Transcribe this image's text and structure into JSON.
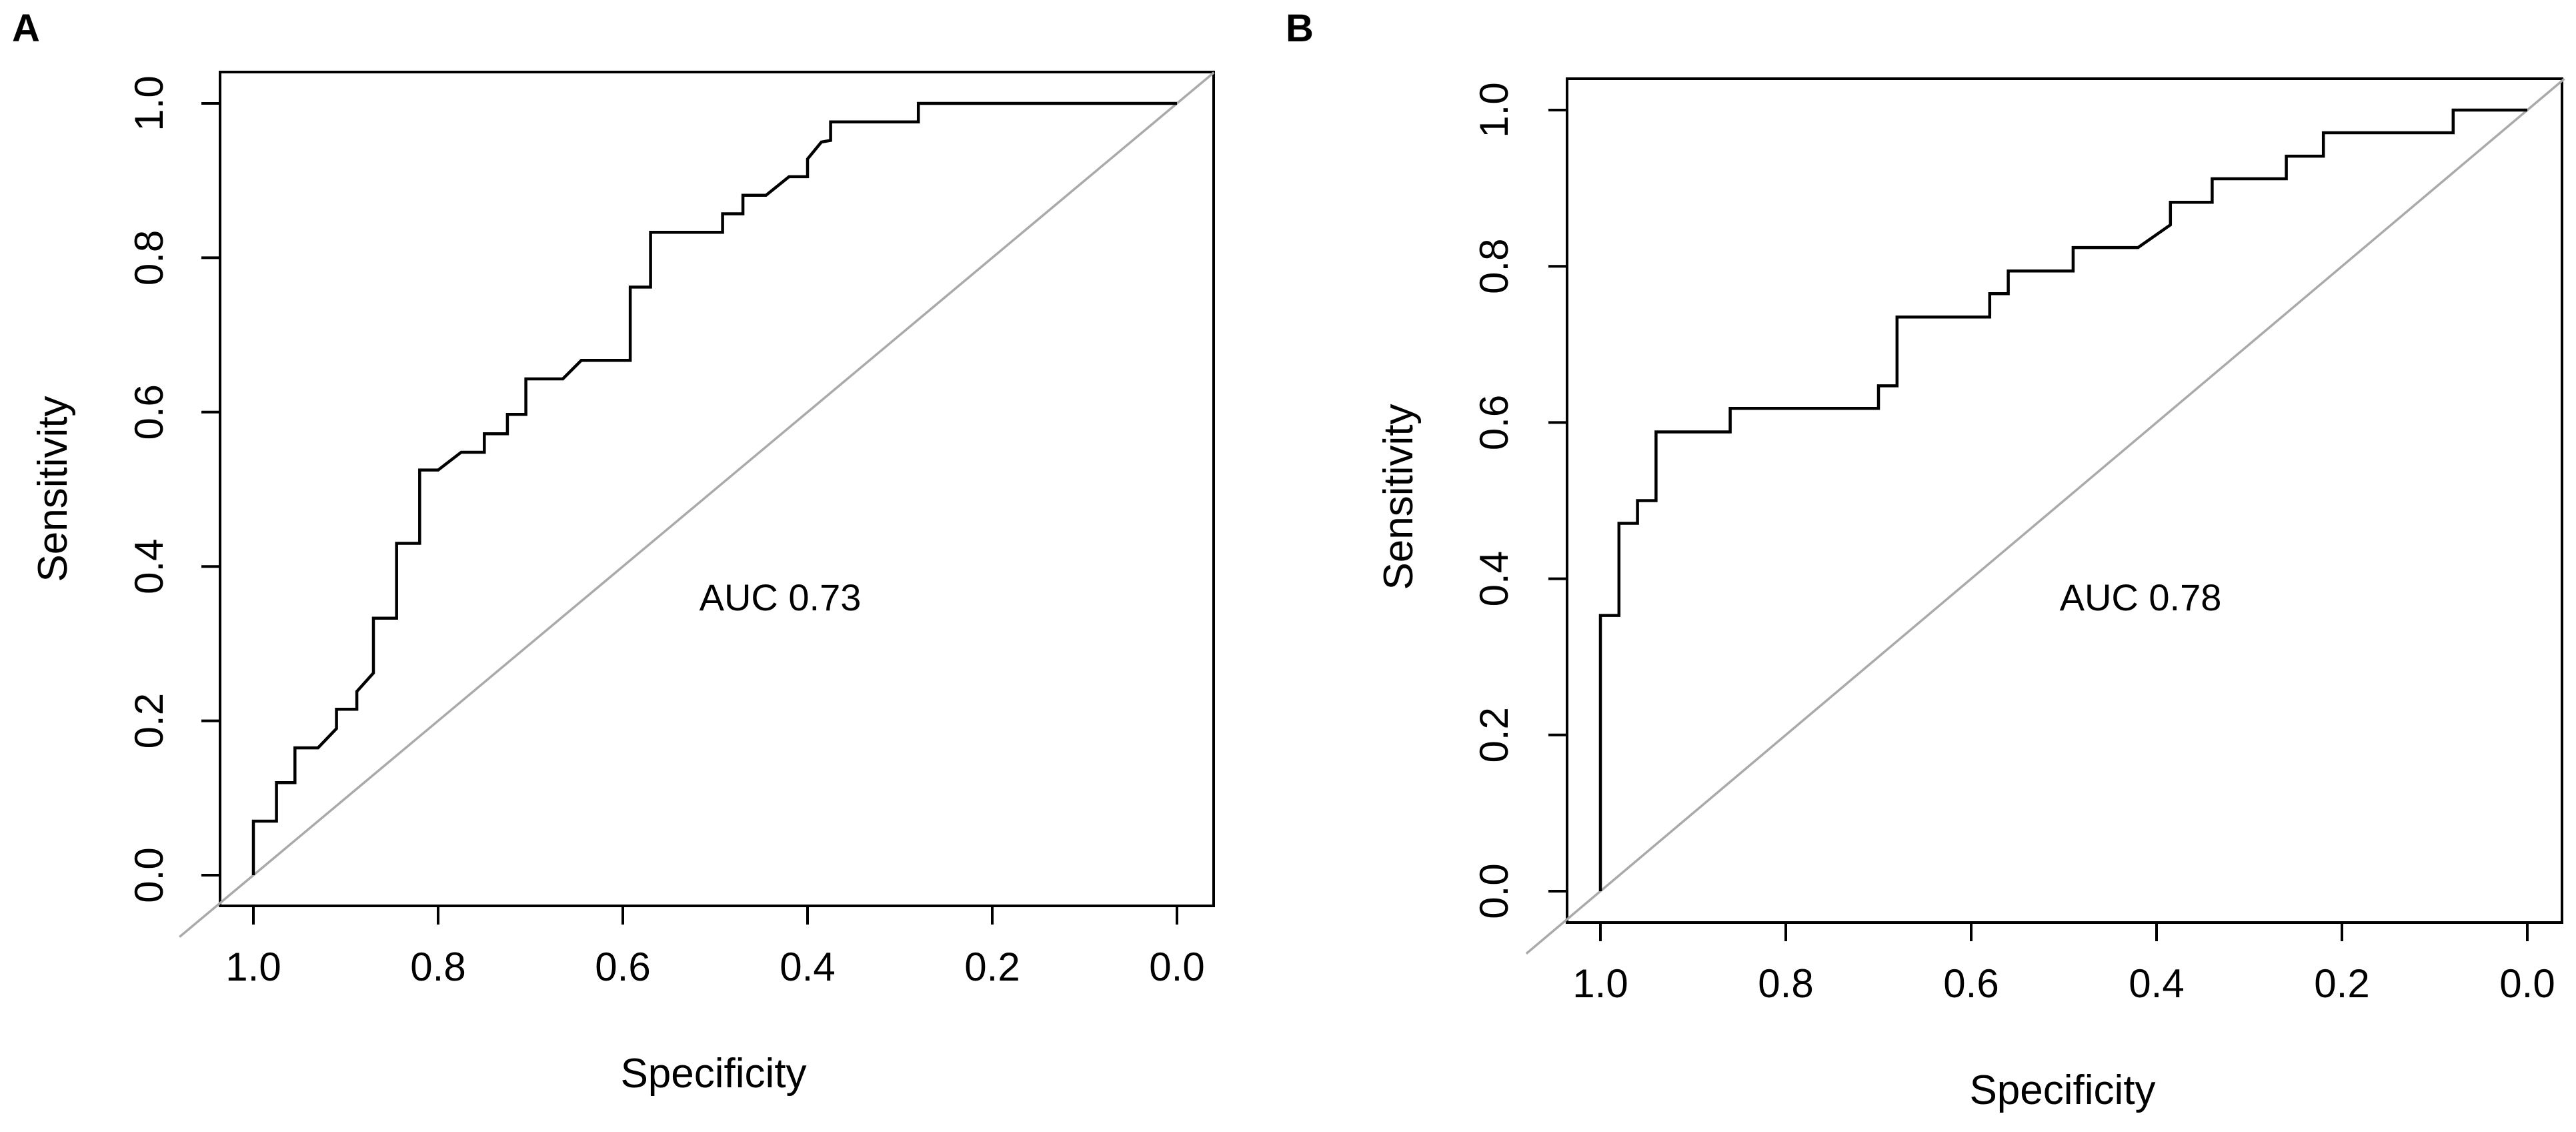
{
  "chart_data": [
    {
      "type": "line",
      "panel": "A",
      "xlabel": "Specificity",
      "ylabel": "Sensitivity",
      "xlim": [
        1.0,
        0.0
      ],
      "ylim": [
        0.0,
        1.0
      ],
      "x_ticks": [
        "1.0",
        "0.8",
        "0.6",
        "0.4",
        "0.2",
        "0.0"
      ],
      "y_ticks": [
        "0.0",
        "0.2",
        "0.4",
        "0.6",
        "0.8",
        "1.0"
      ],
      "annotation": "AUC 0.73",
      "reference_line": "diagonal",
      "series": [
        {
          "name": "ROC",
          "points": [
            [
              1.0,
              0.0
            ],
            [
              1.0,
              0.07
            ],
            [
              0.975,
              0.07
            ],
            [
              0.975,
              0.12
            ],
            [
              0.955,
              0.12
            ],
            [
              0.955,
              0.165
            ],
            [
              0.93,
              0.165
            ],
            [
              0.91,
              0.19
            ],
            [
              0.91,
              0.215
            ],
            [
              0.888,
              0.215
            ],
            [
              0.888,
              0.238
            ],
            [
              0.87,
              0.262
            ],
            [
              0.87,
              0.333
            ],
            [
              0.845,
              0.333
            ],
            [
              0.845,
              0.43
            ],
            [
              0.82,
              0.43
            ],
            [
              0.82,
              0.525
            ],
            [
              0.8,
              0.525
            ],
            [
              0.775,
              0.548
            ],
            [
              0.75,
              0.548
            ],
            [
              0.75,
              0.572
            ],
            [
              0.725,
              0.572
            ],
            [
              0.725,
              0.597
            ],
            [
              0.705,
              0.597
            ],
            [
              0.705,
              0.643
            ],
            [
              0.665,
              0.643
            ],
            [
              0.645,
              0.667
            ],
            [
              0.592,
              0.667
            ],
            [
              0.592,
              0.762
            ],
            [
              0.57,
              0.762
            ],
            [
              0.57,
              0.833
            ],
            [
              0.492,
              0.833
            ],
            [
              0.492,
              0.857
            ],
            [
              0.47,
              0.857
            ],
            [
              0.47,
              0.881
            ],
            [
              0.445,
              0.881
            ],
            [
              0.42,
              0.905
            ],
            [
              0.4,
              0.905
            ],
            [
              0.4,
              0.928
            ],
            [
              0.385,
              0.95
            ],
            [
              0.375,
              0.952
            ],
            [
              0.375,
              0.976
            ],
            [
              0.28,
              0.976
            ],
            [
              0.28,
              1.0
            ],
            [
              0.0,
              1.0
            ]
          ]
        }
      ]
    },
    {
      "type": "line",
      "panel": "B",
      "xlabel": "Specificity",
      "ylabel": "Sensitivity",
      "xlim": [
        1.0,
        0.0
      ],
      "ylim": [
        0.0,
        1.0
      ],
      "x_ticks": [
        "1.0",
        "0.8",
        "0.6",
        "0.4",
        "0.2",
        "0.0"
      ],
      "y_ticks": [
        "0.0",
        "0.2",
        "0.4",
        "0.6",
        "0.8",
        "1.0"
      ],
      "annotation": "AUC 0.78",
      "reference_line": "diagonal",
      "series": [
        {
          "name": "ROC",
          "points": [
            [
              1.0,
              0.0
            ],
            [
              1.0,
              0.353
            ],
            [
              0.98,
              0.353
            ],
            [
              0.98,
              0.471
            ],
            [
              0.96,
              0.471
            ],
            [
              0.96,
              0.5
            ],
            [
              0.94,
              0.5
            ],
            [
              0.94,
              0.588
            ],
            [
              0.86,
              0.588
            ],
            [
              0.86,
              0.618
            ],
            [
              0.7,
              0.618
            ],
            [
              0.7,
              0.647
            ],
            [
              0.68,
              0.647
            ],
            [
              0.68,
              0.735
            ],
            [
              0.58,
              0.735
            ],
            [
              0.58,
              0.765
            ],
            [
              0.56,
              0.765
            ],
            [
              0.56,
              0.794
            ],
            [
              0.49,
              0.794
            ],
            [
              0.49,
              0.824
            ],
            [
              0.42,
              0.824
            ],
            [
              0.385,
              0.853
            ],
            [
              0.385,
              0.882
            ],
            [
              0.34,
              0.882
            ],
            [
              0.34,
              0.912
            ],
            [
              0.26,
              0.912
            ],
            [
              0.26,
              0.941
            ],
            [
              0.22,
              0.941
            ],
            [
              0.22,
              0.971
            ],
            [
              0.08,
              0.971
            ],
            [
              0.08,
              1.0
            ],
            [
              0.0,
              1.0
            ]
          ]
        }
      ]
    }
  ]
}
